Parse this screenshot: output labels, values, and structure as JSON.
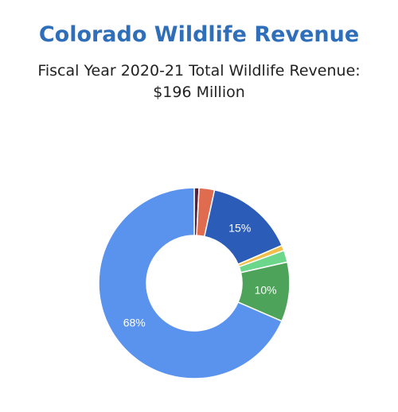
{
  "chart_data": {
    "type": "pie",
    "donut": true,
    "title": "Colorado Wildlife Revenue",
    "subtitle_line1": "Fiscal Year 2020-21 Total Wildlife Revenue:",
    "subtitle_line2": "$196 Million",
    "slices": [
      {
        "value": 0.8,
        "color": "#5a1f3a",
        "label": ""
      },
      {
        "value": 2.6,
        "color": "#e06c4f",
        "label": ""
      },
      {
        "value": 15,
        "color": "#2b5cb8",
        "label": "15%"
      },
      {
        "value": 0.9,
        "color": "#f2c04a",
        "label": ""
      },
      {
        "value": 2.0,
        "color": "#6cd68a",
        "label": ""
      },
      {
        "value": 10,
        "color": "#4ea35a",
        "label": "10%"
      },
      {
        "value": 68,
        "color": "#5a93ee",
        "label": "68%"
      }
    ]
  }
}
